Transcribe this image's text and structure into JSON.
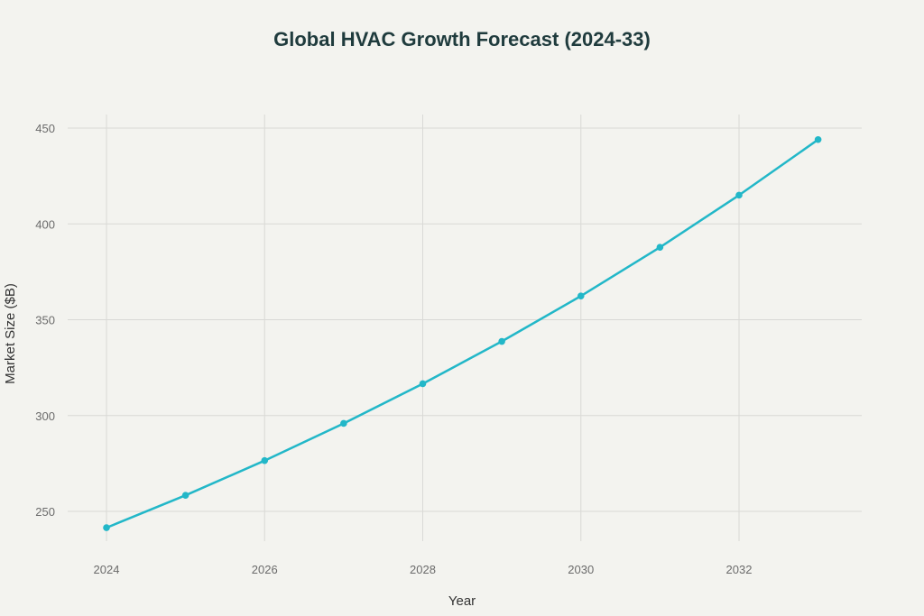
{
  "chart_data": {
    "type": "line",
    "title": "Global HVAC Growth Forecast (2024-33)",
    "xlabel": "Year",
    "ylabel": "Market Size ($B)",
    "x": [
      2024,
      2025,
      2026,
      2027,
      2028,
      2029,
      2030,
      2031,
      2032,
      2033
    ],
    "series": [
      {
        "values": [
          241.5,
          258.4,
          276.5,
          295.9,
          316.6,
          338.7,
          362.4,
          387.8,
          415.0,
          444.0
        ]
      }
    ],
    "xticks": [
      "2024",
      "2026",
      "2028",
      "2030",
      "2032"
    ],
    "yticks": [
      "250",
      "300",
      "350",
      "400",
      "450"
    ],
    "xlim": [
      2023.5,
      2033.55
    ],
    "ylim": [
      235,
      457
    ],
    "grid": true,
    "line_color": "#22b7c8",
    "background": "#f3f3ef"
  }
}
